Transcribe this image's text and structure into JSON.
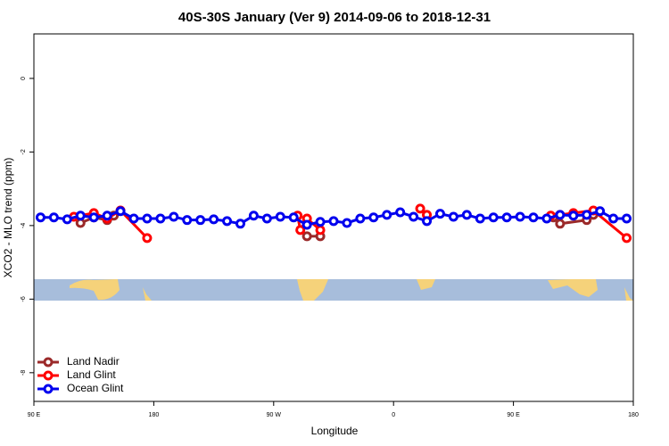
{
  "chart_data": {
    "type": "line",
    "title": "40S-30S January (Ver 9)   2014-09-06 to 2018-12-31",
    "x_label": "Longitude",
    "y_label": "XCO2 - MLO trend (ppm)",
    "xlim": [
      90,
      540
    ],
    "ylim": [
      -8.78,
      1.21
    ],
    "xticks": [
      {
        "value": 90,
        "label": "90 E"
      },
      {
        "value": 180,
        "label": "180"
      },
      {
        "value": 270,
        "label": "90 W"
      },
      {
        "value": 360,
        "label": "0"
      },
      {
        "value": 450,
        "label": "90 E"
      },
      {
        "value": 540,
        "label": "180"
      }
    ],
    "yticks": [
      0,
      -2,
      -4,
      -6,
      -8
    ],
    "legend": "bottom-left",
    "series": [
      {
        "name": "Land Nadir",
        "color": "#9b2a2a",
        "x": [
          125,
          135,
          145,
          150,
          295,
          305,
          480,
          485,
          505,
          510
        ],
        "values": [
          -3.93,
          -3.78,
          -3.85,
          -3.73,
          -4.29,
          -4.29,
          -3.78,
          -3.95,
          -3.85,
          -3.71
        ]
      },
      {
        "name": "Land Glint",
        "color": "#ff0000",
        "x": [
          120,
          135,
          145,
          155,
          175,
          288,
          290,
          295,
          305,
          380,
          385,
          478,
          485,
          495,
          510,
          535
        ],
        "values": [
          -3.76,
          -3.66,
          -3.81,
          -3.59,
          -4.34,
          -3.73,
          -4.12,
          -3.81,
          -4.12,
          -3.54,
          -3.71,
          -3.73,
          -3.71,
          -3.66,
          -3.59,
          -4.34
        ]
      },
      {
        "name": "Ocean Glint",
        "color": "#0000ee",
        "x": [
          95,
          105,
          115,
          125,
          135,
          145,
          155,
          165,
          175,
          185,
          195,
          205,
          215,
          225,
          235,
          245,
          255,
          265,
          275,
          285,
          295,
          305,
          315,
          325,
          335,
          345,
          355,
          365,
          375,
          385,
          395,
          405,
          415,
          425,
          435,
          445,
          455,
          465,
          475,
          485,
          495,
          505,
          515,
          525,
          535
        ],
        "values": [
          -3.78,
          -3.78,
          -3.83,
          -3.73,
          -3.78,
          -3.73,
          -3.61,
          -3.81,
          -3.81,
          -3.81,
          -3.76,
          -3.85,
          -3.85,
          -3.83,
          -3.88,
          -3.95,
          -3.73,
          -3.81,
          -3.76,
          -3.78,
          -3.98,
          -3.9,
          -3.88,
          -3.93,
          -3.81,
          -3.78,
          -3.71,
          -3.64,
          -3.76,
          -3.88,
          -3.68,
          -3.76,
          -3.71,
          -3.81,
          -3.78,
          -3.78,
          -3.76,
          -3.78,
          -3.81,
          -3.71,
          -3.73,
          -3.71,
          -3.61,
          -3.81,
          -3.81
        ]
      }
    ]
  }
}
